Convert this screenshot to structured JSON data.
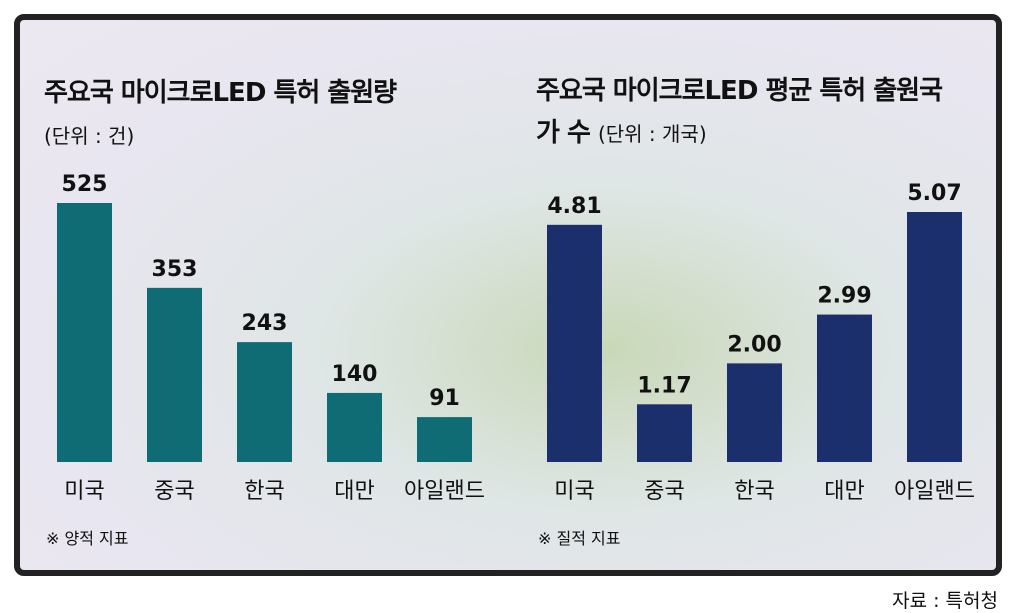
{
  "chart_data": [
    {
      "type": "bar",
      "title": "주요국 마이크로LED 특허 출원량",
      "unit": "(단위 : 건)",
      "categories": [
        "미국",
        "중국",
        "한국",
        "대만",
        "아일랜드"
      ],
      "values": [
        525,
        353,
        243,
        140,
        91
      ],
      "color": "#0f6b74",
      "note": "※ 양적 지표"
    },
    {
      "type": "bar",
      "title": "주요국 마이크로LED 평균 특허 출원국가 수",
      "unit": "(단위 : 개국)",
      "categories": [
        "미국",
        "중국",
        "한국",
        "대만",
        "아일랜드"
      ],
      "values": [
        4.81,
        1.17,
        2.0,
        2.99,
        5.07
      ],
      "value_labels": [
        "4.81",
        "1.17",
        "2.00",
        "2.99",
        "5.07"
      ],
      "color": "#1b2f6d",
      "note": "※ 질적 지표"
    }
  ],
  "source": "자료 : 특허청"
}
